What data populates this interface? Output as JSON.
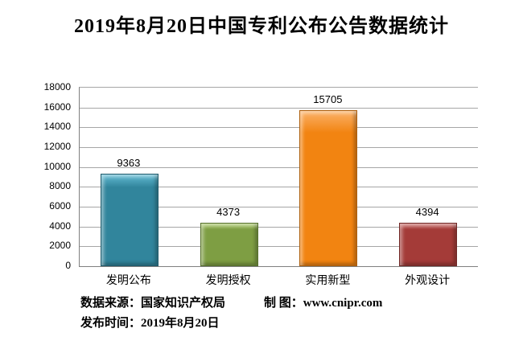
{
  "title": "2019年8月20日中国专利公布公告数据统计",
  "chart_data": {
    "type": "bar",
    "title": "2019年8月20日中国专利公布公告数据统计",
    "categories": [
      "发明公布",
      "发明授权",
      "实用新型",
      "外观设计"
    ],
    "values": [
      9363,
      4373,
      15705,
      4394
    ],
    "value_labels": [
      "9363",
      "4373",
      "15705",
      "4394"
    ],
    "ylim": [
      0,
      18000
    ],
    "ytick_step": 2000,
    "grid": true,
    "legend": false,
    "xlabel": "",
    "ylabel": "",
    "bar_colors": {
      "base": [
        "#31859C",
        "#7E9E43",
        "#F28411",
        "#A43B38"
      ],
      "highlight": [
        "#63BBD3",
        "#AAC86A",
        "#FBB269",
        "#C96E6B"
      ],
      "border": [
        "#1E5A6B",
        "#55702B",
        "#AD5E0B",
        "#702725"
      ]
    },
    "axis_color": "#808080",
    "grid_color": "#a6a6a6"
  },
  "footer": {
    "source_label": "数据来源：国家知识产权局",
    "credit_label": "制 图：www.cnipr.com",
    "date_label": "发布时间：2019年8月20日"
  }
}
